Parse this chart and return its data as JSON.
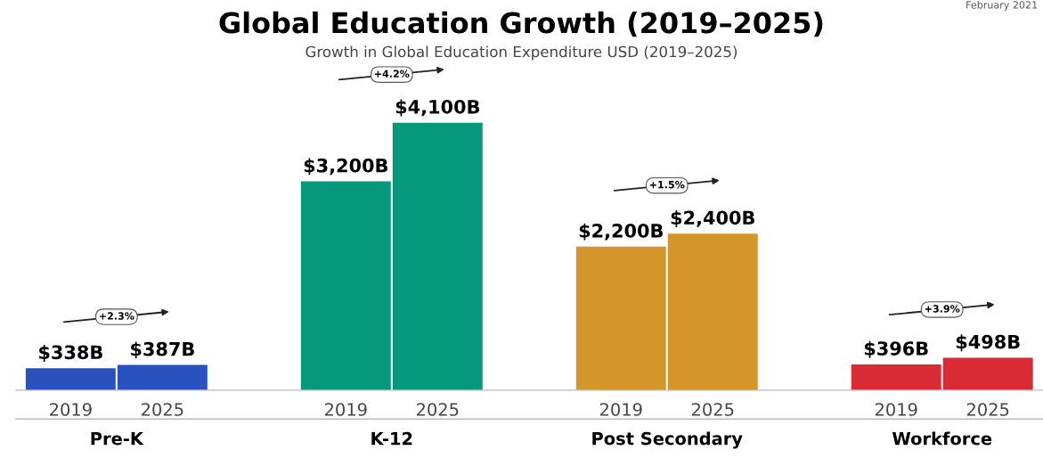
{
  "chart_data": {
    "type": "bar",
    "title": "Global Education Growth (2019–2025)",
    "subtitle": "Growth in Global Education Expenditure USD (2019–2025)",
    "categories": [
      "2019",
      "2025",
      null,
      "2019",
      "2025",
      null,
      "2019",
      "2025",
      null,
      "2019",
      "2025"
    ],
    "values": [
      338,
      387,
      null,
      3200,
      4100,
      null,
      2200,
      2400,
      null,
      396,
      498
    ],
    "colors": [
      "#2a52be",
      "#2a52be",
      "#ffffff",
      "#05987a",
      "#05987a",
      "#ffffff",
      "#d4952a",
      "#d4952a",
      "#ffffff",
      "#d92b35",
      "#d92b35"
    ],
    "value_labels": [
      "$338B",
      "$387B",
      null,
      "$3,200B",
      "$4,100B",
      null,
      "$2,200B",
      "$2,400B",
      null,
      "$396B",
      "$498B"
    ],
    "annotations": [
      "February 2021",
      "Pre-K",
      "K-12",
      "Post Secondary",
      "Workforce",
      "+2.3%",
      "+4.2%",
      "+1.5%",
      "+3.9%"
    ],
    "grid": false,
    "legend": false
  }
}
